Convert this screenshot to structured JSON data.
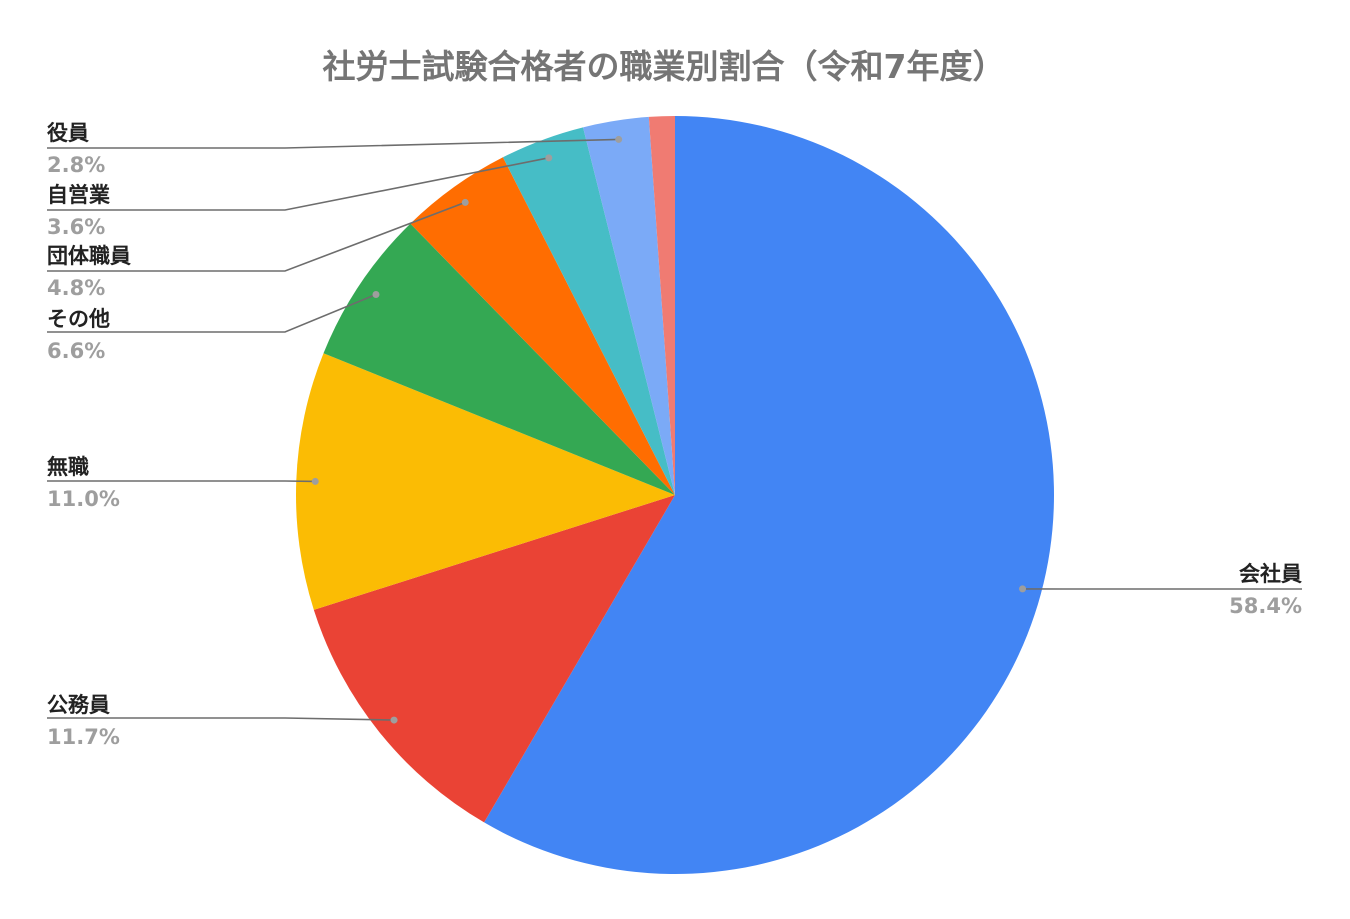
{
  "chart_data": {
    "type": "pie",
    "title": "社労士試験合格者の職業別割合（令和7年度）",
    "slices": [
      {
        "label": "会社員",
        "value": 58.4,
        "value_label": "58.4%",
        "color": "#4285f4"
      },
      {
        "label": "公務員",
        "value": 11.7,
        "value_label": "11.7%",
        "color": "#ea4335"
      },
      {
        "label": "無職",
        "value": 11.0,
        "value_label": "11.0%",
        "color": "#fbbc04"
      },
      {
        "label": "その他",
        "value": 6.6,
        "value_label": "6.6%",
        "color": "#34a853"
      },
      {
        "label": "団体職員",
        "value": 4.8,
        "value_label": "4.8%",
        "color": "#ff6d01"
      },
      {
        "label": "自営業",
        "value": 3.6,
        "value_label": "3.6%",
        "color": "#46bdc6"
      },
      {
        "label": "役員",
        "value": 2.8,
        "value_label": "2.8%",
        "color": "#7baaf7"
      },
      {
        "label": "",
        "value": 1.1,
        "value_label": "",
        "color": "#f07b72"
      }
    ],
    "start": "12 o'clock",
    "direction": "clockwise",
    "legend": "none"
  }
}
